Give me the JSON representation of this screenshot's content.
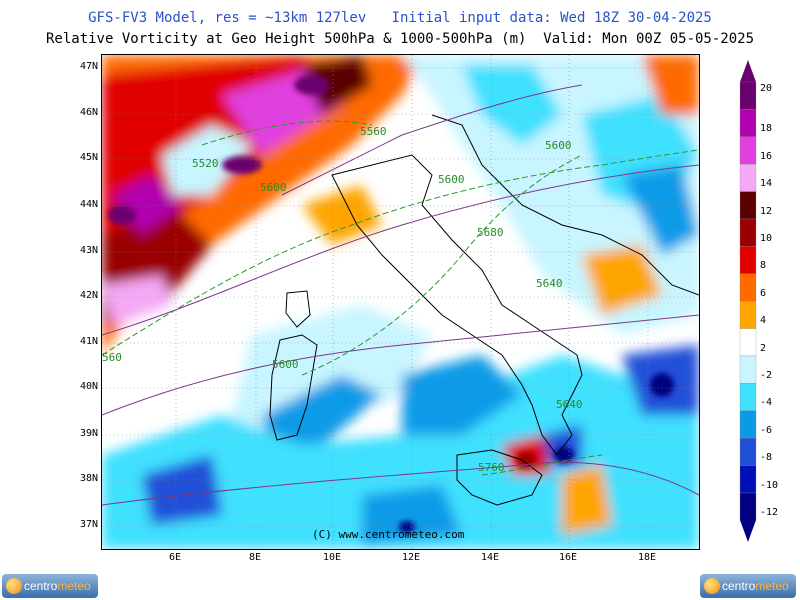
{
  "header": {
    "line1": "GFS-FV3 Model, res = ~13km 127lev   Initial input data: Wed 18Z 30-04-2025",
    "line2": "Relative Vorticity at Geo Height 500hPa & 1000-500hPa (m)  Valid: Mon 00Z 05-05-2025"
  },
  "map": {
    "lat_labels": [
      "47N",
      "46N",
      "45N",
      "44N",
      "43N",
      "42N",
      "41N",
      "40N",
      "39N",
      "38N",
      "37N"
    ],
    "lon_labels": [
      "6E",
      "8E",
      "10E",
      "12E",
      "14E",
      "16E",
      "18E"
    ],
    "contour_labels": [
      "5560",
      "5520",
      "5600",
      "5600",
      "5600",
      "5680",
      "5640",
      "5600",
      "5640",
      "5760",
      "560"
    ],
    "copyright": "(C) www.centrometeo.com"
  },
  "colorbar": {
    "labels": [
      "20",
      "18",
      "16",
      "14",
      "12",
      "10",
      "8",
      "6",
      "4",
      "2",
      "-2",
      "-4",
      "-6",
      "-8",
      "-10",
      "-12"
    ],
    "colors": [
      "#6a0070",
      "#b000b0",
      "#e040e0",
      "#f5a8f5",
      "#5a0000",
      "#9a0000",
      "#e00000",
      "#ff6a00",
      "#ffa500",
      "#ffffff",
      "#c8f5ff",
      "#40e0ff",
      "#0a9be8",
      "#2050d8",
      "#0010b8",
      "#000080"
    ]
  },
  "logos": {
    "left_text_a": "centro",
    "left_text_b": "meteo",
    "right_text_a": "centro",
    "right_text_b": "meteo"
  }
}
